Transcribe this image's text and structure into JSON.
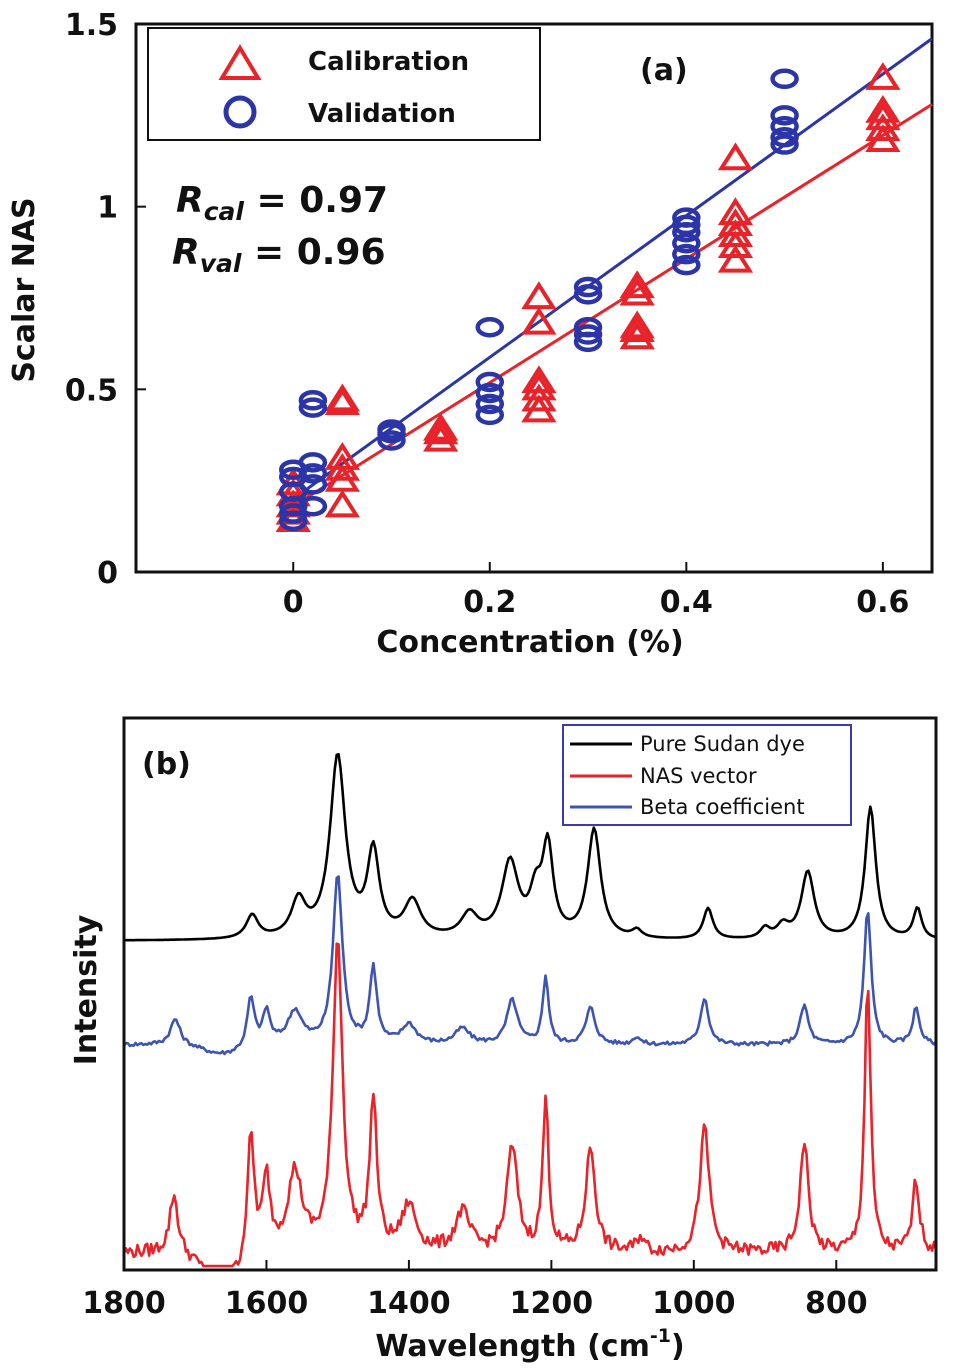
{
  "chart_data": [
    {
      "panel": "(a)",
      "type": "scatter",
      "xlabel": "Concentration (%)",
      "ylabel": "Scalar NAS",
      "xlim": [
        -0.16,
        0.65
      ],
      "ylim": [
        0,
        1.5
      ],
      "xticks": [
        "0",
        "0.2",
        "0.4",
        "0.6"
      ],
      "yticks": [
        "0",
        "0.5",
        "1",
        "1.5"
      ],
      "legend_position": "top-left",
      "series": [
        {
          "name": "Calibration",
          "marker": "triangle",
          "color": "#e8232a",
          "points": [
            [
              0,
              0.14
            ],
            [
              0,
              0.16
            ],
            [
              0,
              0.18
            ],
            [
              0,
              0.21
            ],
            [
              0,
              0.24
            ],
            [
              0.05,
              0.18
            ],
            [
              0.05,
              0.25
            ],
            [
              0.05,
              0.28
            ],
            [
              0.05,
              0.31
            ],
            [
              0.05,
              0.46
            ],
            [
              0.05,
              0.47
            ],
            [
              0.15,
              0.36
            ],
            [
              0.15,
              0.38
            ],
            [
              0.15,
              0.39
            ],
            [
              0.25,
              0.44
            ],
            [
              0.25,
              0.47
            ],
            [
              0.25,
              0.5
            ],
            [
              0.25,
              0.52
            ],
            [
              0.25,
              0.68
            ],
            [
              0.25,
              0.75
            ],
            [
              0.35,
              0.64
            ],
            [
              0.35,
              0.66
            ],
            [
              0.35,
              0.67
            ],
            [
              0.35,
              0.76
            ],
            [
              0.35,
              0.78
            ],
            [
              0.45,
              0.85
            ],
            [
              0.45,
              0.89
            ],
            [
              0.45,
              0.92
            ],
            [
              0.45,
              0.95
            ],
            [
              0.45,
              0.98
            ],
            [
              0.45,
              1.13
            ],
            [
              0.6,
              1.18
            ],
            [
              0.6,
              1.21
            ],
            [
              0.6,
              1.24
            ],
            [
              0.6,
              1.26
            ],
            [
              0.6,
              1.35
            ]
          ]
        },
        {
          "name": "Validation",
          "marker": "circle",
          "color": "#2b35a8",
          "points": [
            [
              0,
              0.14
            ],
            [
              0,
              0.16
            ],
            [
              0,
              0.18
            ],
            [
              0,
              0.22
            ],
            [
              0,
              0.26
            ],
            [
              0,
              0.28
            ],
            [
              0.02,
              0.18
            ],
            [
              0.02,
              0.24
            ],
            [
              0.02,
              0.27
            ],
            [
              0.02,
              0.3
            ],
            [
              0.02,
              0.45
            ],
            [
              0.02,
              0.47
            ],
            [
              0.1,
              0.36
            ],
            [
              0.1,
              0.38
            ],
            [
              0.1,
              0.39
            ],
            [
              0.2,
              0.43
            ],
            [
              0.2,
              0.46
            ],
            [
              0.2,
              0.49
            ],
            [
              0.2,
              0.52
            ],
            [
              0.2,
              0.67
            ],
            [
              0.3,
              0.63
            ],
            [
              0.3,
              0.65
            ],
            [
              0.3,
              0.67
            ],
            [
              0.3,
              0.76
            ],
            [
              0.3,
              0.78
            ],
            [
              0.4,
              0.84
            ],
            [
              0.4,
              0.87
            ],
            [
              0.4,
              0.9
            ],
            [
              0.4,
              0.93
            ],
            [
              0.4,
              0.95
            ],
            [
              0.4,
              0.97
            ],
            [
              0.5,
              1.17
            ],
            [
              0.5,
              1.19
            ],
            [
              0.5,
              1.22
            ],
            [
              0.5,
              1.25
            ],
            [
              0.5,
              1.35
            ]
          ]
        }
      ],
      "fit_lines": [
        {
          "series": "Calibration",
          "x": [
            0,
            0.65
          ],
          "y": [
            0.18,
            1.28
          ]
        },
        {
          "series": "Validation",
          "x": [
            0,
            0.65
          ],
          "y": [
            0.2,
            1.46
          ]
        }
      ],
      "annotations": [
        {
          "base": "R",
          "sub": "cal",
          "text": " = 0.97"
        },
        {
          "base": "R",
          "sub": "val",
          "text": " = 0.96"
        }
      ]
    },
    {
      "panel": "(b)",
      "type": "line",
      "xlabel": "Wavelength (cm",
      "xlabel_sup": "-1",
      "xlabel_end": ")",
      "ylabel": "Intensity",
      "xlim": [
        1800,
        660
      ],
      "xticks": [
        "1800",
        "1600",
        "1400",
        "1200",
        "1000",
        "800"
      ],
      "legend_position": "top-right",
      "y_note": "intensity in arbitrary units, vertically offset traces; no y tick labels",
      "series": [
        {
          "name": "Pure Sudan dye",
          "color": "#000000",
          "baseline": 0.8,
          "peaks": [
            [
              1620,
              0.18,
              10
            ],
            [
              1555,
              0.28,
              12
            ],
            [
              1500,
              1.4,
              13
            ],
            [
              1450,
              0.65,
              10
            ],
            [
              1395,
              0.28,
              14
            ],
            [
              1315,
              0.18,
              14
            ],
            [
              1258,
              0.58,
              14
            ],
            [
              1222,
              0.3,
              10
            ],
            [
              1205,
              0.68,
              9
            ],
            [
              1140,
              0.84,
              11
            ],
            [
              1080,
              0.06,
              8
            ],
            [
              980,
              0.24,
              8
            ],
            [
              900,
              0.08,
              8
            ],
            [
              875,
              0.1,
              10
            ],
            [
              840,
              0.52,
              11
            ],
            [
              752,
              1.02,
              9
            ],
            [
              686,
              0.24,
              7
            ]
          ],
          "noise": 0.0
        },
        {
          "name": "Beta coefficient",
          "color": "#3d54b1",
          "baseline": 0.0,
          "peaks": [
            [
              1728,
              0.2,
              8
            ],
            [
              1622,
              0.38,
              6
            ],
            [
              1600,
              0.25,
              6
            ],
            [
              1560,
              0.25,
              12
            ],
            [
              1500,
              1.3,
              8
            ],
            [
              1450,
              0.58,
              6
            ],
            [
              1400,
              0.15,
              12
            ],
            [
              1325,
              0.12,
              12
            ],
            [
              1255,
              0.34,
              9
            ],
            [
              1208,
              0.52,
              5
            ],
            [
              1145,
              0.28,
              8
            ],
            [
              1080,
              0.06,
              6
            ],
            [
              985,
              0.36,
              7
            ],
            [
              845,
              0.3,
              7
            ],
            [
              756,
              1.04,
              6
            ],
            [
              688,
              0.28,
              6
            ]
          ],
          "noise": 0.015
        },
        {
          "name": "NAS vector",
          "color": "#e8232a",
          "baseline": -1.6,
          "peaks": [
            [
              1730,
              0.45,
              7
            ],
            [
              1622,
              0.95,
              6
            ],
            [
              1600,
              0.55,
              6
            ],
            [
              1560,
              0.6,
              12
            ],
            [
              1500,
              2.4,
              8
            ],
            [
              1450,
              1.15,
              6
            ],
            [
              1400,
              0.35,
              12
            ],
            [
              1325,
              0.3,
              12
            ],
            [
              1255,
              0.8,
              9
            ],
            [
              1208,
              1.15,
              5
            ],
            [
              1145,
              0.8,
              8
            ],
            [
              1075,
              0.12,
              6
            ],
            [
              985,
              0.95,
              8
            ],
            [
              845,
              0.85,
              7
            ],
            [
              756,
              2.1,
              5
            ],
            [
              688,
              0.55,
              6
            ]
          ],
          "noise": 0.05
        }
      ]
    }
  ]
}
